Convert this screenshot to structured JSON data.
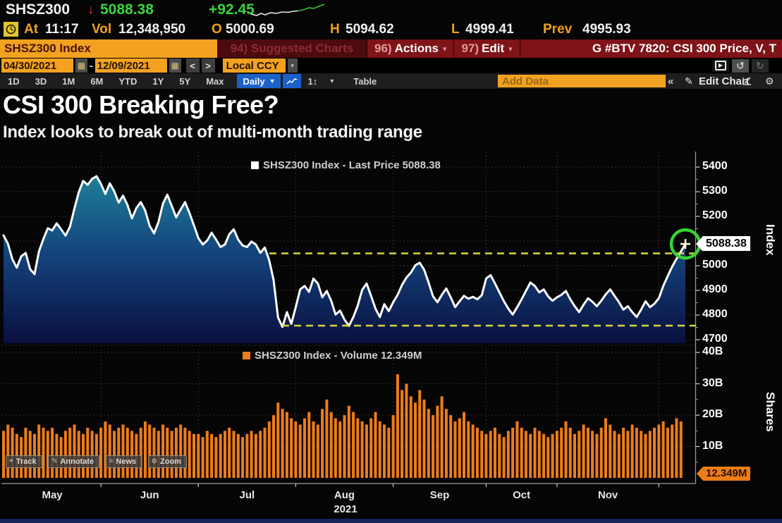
{
  "quote": {
    "ticker": "SHSZ300",
    "arrow_down": "↓",
    "last": "5088.38",
    "change": "+92.45",
    "at_label": "At",
    "time": "11:17",
    "vol_label": "Vol",
    "volume": "12,348,950",
    "open_label": "O",
    "open": "5000.69",
    "high_label": "H",
    "high": "5094.62",
    "low_label": "L",
    "low": "4999.41",
    "prev_label": "Prev",
    "prev": "4995.93"
  },
  "menubar": {
    "security": "SHSZ300 Index",
    "suggested_label": "94) Suggested Charts",
    "actions_num": "96)",
    "actions_label": "Actions",
    "edit_num": "97)",
    "edit_label": "Edit",
    "caret": "▾",
    "chart_ref": "G #BTV 7820: CSI 300 Price, V, T"
  },
  "datebar": {
    "start_date": "04/30/2021",
    "end_date": "12/09/2021",
    "dash": "-",
    "calendar_glyph": "▦",
    "prev_btn": "<",
    "next_btn": ">",
    "currency": "Local CCY",
    "ccy_caret": "▾",
    "undo_glyph": "↺",
    "redo_glyph": "↻",
    "play_glyph": "▶"
  },
  "toolbar": {
    "ranges": [
      "1D",
      "3D",
      "1M",
      "6M",
      "YTD",
      "1Y",
      "5Y",
      "Max"
    ],
    "period": "Daily",
    "period_caret": "▼",
    "sort_glyph": "1↕",
    "more_caret": "▾",
    "table_label": "Table",
    "add_data_placeholder": "Add Data",
    "collapse": "«",
    "pencil_glyph": "✎",
    "edit_chart_label": "Edit Chart",
    "gear_glyph": "⚙"
  },
  "headline": {
    "title": "CSI 300 Breaking Free?",
    "subtitle": "Index looks to break out of multi-month trading range"
  },
  "price_panel": {
    "legend": "SHSZ300 Index - Last Price 5088.38",
    "axis_name": "Index",
    "price_tag": "5088.38"
  },
  "volume_panel": {
    "legend": "SHSZ300 Index - Volume 12.349M",
    "axis_name": "Shares",
    "volume_tag": "12.349M"
  },
  "overlay_buttons": [
    {
      "icon": "+",
      "label": "Track"
    },
    {
      "icon": "✎",
      "label": "Annotate"
    },
    {
      "icon": "≡",
      "label": "News"
    },
    {
      "icon": "⊙",
      "label": "Zoom"
    }
  ],
  "xaxis": {
    "year": "2021"
  },
  "colors": {
    "amber": "#f2a220",
    "green": "#3bd43b",
    "red": "#e03434",
    "blue_btn": "#1c60c9",
    "volume_orange": "#ef7d17",
    "line_white": "#ffffff",
    "dashed_yellow": "#d8d83c",
    "circle_green": "#35d435"
  },
  "chart_data": {
    "type": "combo",
    "x_start": "04/30/2021",
    "x_end": "12/09/2021",
    "frequency": "Daily",
    "months": [
      "May",
      "Jun",
      "Jul",
      "Aug",
      "Sep",
      "Oct",
      "Nov"
    ],
    "month_boundaries_idx": [
      0,
      22,
      44,
      66,
      88,
      109,
      125,
      148,
      155
    ],
    "panels": [
      {
        "type": "line",
        "name": "SHSZ300 Index - Last Price",
        "last": 5088.38,
        "ylabel": "Index",
        "yticks": [
          5400,
          5300,
          5200,
          5000,
          4900,
          4800,
          4700
        ],
        "gridlines": [
          5400,
          5300,
          5200,
          5100,
          5000,
          4900,
          4800,
          4700
        ],
        "ylim": [
          4650,
          5460
        ],
        "resistance_dash": 5050,
        "support_dash": 4757,
        "prices": [
          5123,
          5089,
          5026,
          4992,
          5038,
          5052,
          4986,
          4966,
          5058,
          5108,
          5152,
          5143,
          5172,
          5148,
          5122,
          5158,
          5232,
          5298,
          5344,
          5328,
          5352,
          5363,
          5332,
          5291,
          5334,
          5302,
          5256,
          5284,
          5246,
          5192,
          5234,
          5258,
          5224,
          5162,
          5131,
          5178,
          5252,
          5288,
          5242,
          5196,
          5228,
          5258,
          5214,
          5164,
          5112,
          5086,
          5102,
          5134,
          5106,
          5076,
          5086,
          5128,
          5148,
          5106,
          5082,
          5076,
          5098,
          5086,
          5052,
          5074,
          5022,
          4942,
          4790,
          4752,
          4812,
          4764,
          4832,
          4904,
          4918,
          4894,
          4948,
          4928,
          4872,
          4898,
          4858,
          4802,
          4818,
          4782,
          4756,
          4792,
          4838,
          4902,
          4928,
          4878,
          4826,
          4792,
          4844,
          4816,
          4852,
          4882,
          4922,
          4952,
          4972,
          5002,
          5012,
          4984,
          4932,
          4876,
          4852,
          4882,
          4908,
          4872,
          4832,
          4856,
          4878,
          4866,
          4874,
          4864,
          4880,
          4948,
          4962,
          4928,
          4892,
          4856,
          4826,
          4802,
          4832,
          4864,
          4898,
          4932,
          4918,
          4892,
          4904,
          4876,
          4858,
          4872,
          4882,
          4898,
          4864,
          4836,
          4812,
          4842,
          4868,
          4854,
          4836,
          4858,
          4884,
          4904,
          4878,
          4852,
          4822,
          4836,
          4812,
          4792,
          4822,
          4856,
          4832,
          4846,
          4868,
          4918,
          4958,
          4996,
          5028,
          5058,
          5088.38
        ]
      },
      {
        "type": "bar",
        "name": "SHSZ300 Index - Volume",
        "last_label": "12.349M",
        "ylabel": "Shares",
        "yticks_B": [
          10,
          20,
          30,
          40
        ],
        "ylim_B": [
          0,
          44
        ],
        "volumes_B": [
          15,
          17,
          16,
          14,
          13,
          16,
          15,
          14,
          17,
          16,
          15,
          16,
          14,
          13,
          15,
          16,
          17,
          15,
          14,
          16,
          15,
          14,
          16,
          18,
          17,
          15,
          16,
          17,
          16,
          15,
          14,
          16,
          18,
          17,
          16,
          15,
          17,
          16,
          15,
          16,
          17,
          16,
          15,
          14,
          14,
          13,
          15,
          14,
          13,
          14,
          15,
          16,
          15,
          14,
          13,
          14,
          15,
          14,
          15,
          16,
          18,
          20,
          24,
          22,
          21,
          19,
          18,
          17,
          19,
          21,
          18,
          17,
          22,
          25,
          21,
          19,
          18,
          20,
          23,
          21,
          19,
          18,
          17,
          19,
          21,
          18,
          17,
          16,
          20,
          33,
          28,
          30,
          26,
          24,
          28,
          25,
          22,
          20,
          23,
          26,
          22,
          20,
          18,
          19,
          21,
          18,
          17,
          16,
          15,
          14,
          15,
          16,
          14,
          13,
          15,
          16,
          18,
          16,
          15,
          14,
          16,
          15,
          14,
          13,
          14,
          15,
          16,
          18,
          16,
          14,
          15,
          17,
          16,
          15,
          14,
          16,
          19,
          17,
          15,
          14,
          16,
          15,
          17,
          16,
          15,
          14,
          15,
          16,
          17,
          18,
          16,
          17,
          19,
          18,
          0.012
        ]
      }
    ]
  }
}
